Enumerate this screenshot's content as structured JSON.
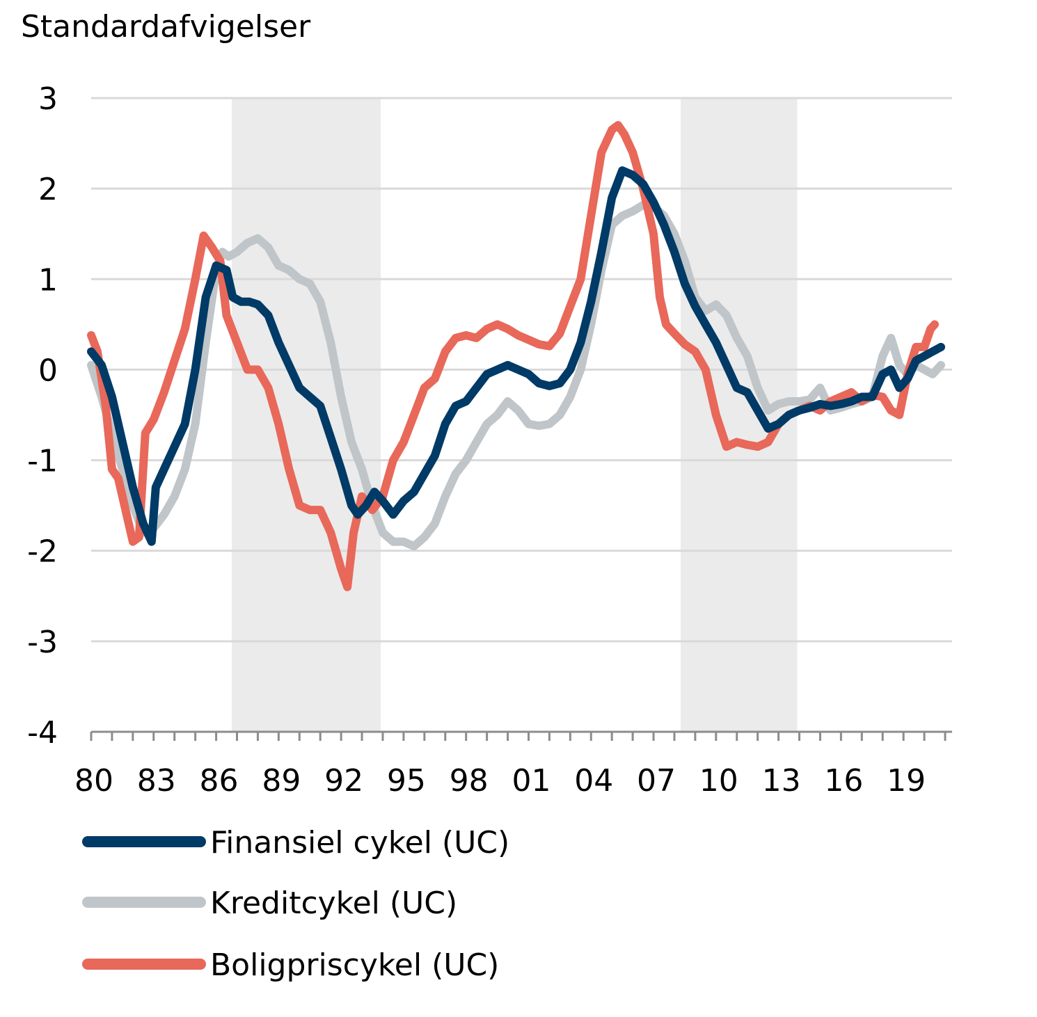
{
  "chart_data": {
    "type": "line",
    "ylabel": "Standardafvigelser",
    "ylim": [
      -4,
      3
    ],
    "yticks": [
      "3",
      "2",
      "1",
      "0",
      "-1",
      "-2",
      "-3",
      "-4"
    ],
    "xlim": [
      1980,
      2021.5
    ],
    "xtick_labels": [
      {
        "year": 1980,
        "label": "80"
      },
      {
        "year": 1983,
        "label": "83"
      },
      {
        "year": 1986,
        "label": "86"
      },
      {
        "year": 1989,
        "label": "89"
      },
      {
        "year": 1992,
        "label": "92"
      },
      {
        "year": 1995,
        "label": "95"
      },
      {
        "year": 1998,
        "label": "98"
      },
      {
        "year": 2001,
        "label": "01"
      },
      {
        "year": 2004,
        "label": "04"
      },
      {
        "year": 2007,
        "label": "07"
      },
      {
        "year": 2010,
        "label": "10"
      },
      {
        "year": 2013,
        "label": "13"
      },
      {
        "year": 2016,
        "label": "16"
      },
      {
        "year": 2019,
        "label": "19"
      }
    ],
    "grid": true,
    "legend_position": "bottom",
    "shaded_periods": [
      {
        "start": 1986.75,
        "end": 1993.9
      },
      {
        "start": 2008.3,
        "end": 2013.9
      }
    ],
    "shade_color": "#ebebeb",
    "series": [
      {
        "name": "Finansiel cykel (UC)",
        "color": "#003a66",
        "points": [
          [
            1980.0,
            0.2
          ],
          [
            1980.5,
            0.05
          ],
          [
            1981.0,
            -0.3
          ],
          [
            1981.5,
            -0.8
          ],
          [
            1982.0,
            -1.3
          ],
          [
            1982.5,
            -1.7
          ],
          [
            1982.9,
            -1.9
          ],
          [
            1983.1,
            -1.3
          ],
          [
            1983.5,
            -1.1
          ],
          [
            1984.0,
            -0.85
          ],
          [
            1984.5,
            -0.6
          ],
          [
            1985.0,
            0.0
          ],
          [
            1985.5,
            0.8
          ],
          [
            1986.0,
            1.15
          ],
          [
            1986.5,
            1.1
          ],
          [
            1986.8,
            0.8
          ],
          [
            1987.2,
            0.75
          ],
          [
            1987.6,
            0.75
          ],
          [
            1988.0,
            0.72
          ],
          [
            1988.5,
            0.6
          ],
          [
            1989.0,
            0.3
          ],
          [
            1989.5,
            0.05
          ],
          [
            1990.0,
            -0.2
          ],
          [
            1990.5,
            -0.3
          ],
          [
            1991.0,
            -0.4
          ],
          [
            1991.5,
            -0.75
          ],
          [
            1992.0,
            -1.1
          ],
          [
            1992.5,
            -1.5
          ],
          [
            1992.8,
            -1.6
          ],
          [
            1993.2,
            -1.5
          ],
          [
            1993.6,
            -1.35
          ],
          [
            1994.0,
            -1.45
          ],
          [
            1994.5,
            -1.6
          ],
          [
            1995.0,
            -1.45
          ],
          [
            1995.5,
            -1.35
          ],
          [
            1996.0,
            -1.15
          ],
          [
            1996.5,
            -0.95
          ],
          [
            1997.0,
            -0.6
          ],
          [
            1997.5,
            -0.4
          ],
          [
            1998.0,
            -0.35
          ],
          [
            1998.5,
            -0.2
          ],
          [
            1999.0,
            -0.05
          ],
          [
            1999.5,
            0.0
          ],
          [
            2000.0,
            0.05
          ],
          [
            2000.5,
            0.0
          ],
          [
            2001.0,
            -0.05
          ],
          [
            2001.5,
            -0.15
          ],
          [
            2002.0,
            -0.18
          ],
          [
            2002.5,
            -0.15
          ],
          [
            2003.0,
            0.0
          ],
          [
            2003.5,
            0.3
          ],
          [
            2004.0,
            0.75
          ],
          [
            2004.5,
            1.3
          ],
          [
            2005.0,
            1.9
          ],
          [
            2005.5,
            2.2
          ],
          [
            2006.0,
            2.15
          ],
          [
            2006.5,
            2.05
          ],
          [
            2007.0,
            1.85
          ],
          [
            2007.5,
            1.6
          ],
          [
            2008.0,
            1.3
          ],
          [
            2008.5,
            0.95
          ],
          [
            2009.0,
            0.7
          ],
          [
            2009.5,
            0.5
          ],
          [
            2010.0,
            0.3
          ],
          [
            2010.5,
            0.05
          ],
          [
            2011.0,
            -0.2
          ],
          [
            2011.5,
            -0.25
          ],
          [
            2012.0,
            -0.45
          ],
          [
            2012.5,
            -0.65
          ],
          [
            2013.0,
            -0.6
          ],
          [
            2013.5,
            -0.5
          ],
          [
            2014.0,
            -0.45
          ],
          [
            2014.5,
            -0.42
          ],
          [
            2015.0,
            -0.38
          ],
          [
            2015.5,
            -0.4
          ],
          [
            2016.0,
            -0.38
          ],
          [
            2016.5,
            -0.35
          ],
          [
            2017.0,
            -0.3
          ],
          [
            2017.5,
            -0.3
          ],
          [
            2018.0,
            -0.05
          ],
          [
            2018.4,
            0.0
          ],
          [
            2018.8,
            -0.2
          ],
          [
            2019.2,
            -0.1
          ],
          [
            2019.6,
            0.1
          ],
          [
            2020.0,
            0.15
          ],
          [
            2020.4,
            0.2
          ],
          [
            2020.8,
            0.25
          ]
        ]
      },
      {
        "name": "Kreditcykel (UC)",
        "color": "#bfc5c8",
        "points": [
          [
            1980.0,
            0.05
          ],
          [
            1980.5,
            -0.3
          ],
          [
            1981.0,
            -0.7
          ],
          [
            1981.5,
            -1.1
          ],
          [
            1982.0,
            -1.5
          ],
          [
            1982.5,
            -1.8
          ],
          [
            1983.0,
            -1.75
          ],
          [
            1983.5,
            -1.6
          ],
          [
            1984.0,
            -1.4
          ],
          [
            1984.5,
            -1.1
          ],
          [
            1985.0,
            -0.6
          ],
          [
            1985.5,
            0.3
          ],
          [
            1986.0,
            1.1
          ],
          [
            1986.3,
            1.3
          ],
          [
            1986.6,
            1.25
          ],
          [
            1987.0,
            1.3
          ],
          [
            1987.5,
            1.4
          ],
          [
            1988.0,
            1.45
          ],
          [
            1988.5,
            1.35
          ],
          [
            1989.0,
            1.15
          ],
          [
            1989.5,
            1.1
          ],
          [
            1990.0,
            1.0
          ],
          [
            1990.5,
            0.95
          ],
          [
            1991.0,
            0.75
          ],
          [
            1991.5,
            0.3
          ],
          [
            1992.0,
            -0.3
          ],
          [
            1992.5,
            -0.8
          ],
          [
            1993.0,
            -1.1
          ],
          [
            1993.5,
            -1.5
          ],
          [
            1994.0,
            -1.8
          ],
          [
            1994.5,
            -1.9
          ],
          [
            1995.0,
            -1.9
          ],
          [
            1995.5,
            -1.95
          ],
          [
            1996.0,
            -1.85
          ],
          [
            1996.5,
            -1.7
          ],
          [
            1997.0,
            -1.4
          ],
          [
            1997.5,
            -1.15
          ],
          [
            1998.0,
            -1.0
          ],
          [
            1998.5,
            -0.8
          ],
          [
            1999.0,
            -0.6
          ],
          [
            1999.5,
            -0.5
          ],
          [
            2000.0,
            -0.35
          ],
          [
            2000.5,
            -0.45
          ],
          [
            2001.0,
            -0.6
          ],
          [
            2001.5,
            -0.62
          ],
          [
            2002.0,
            -0.6
          ],
          [
            2002.5,
            -0.5
          ],
          [
            2003.0,
            -0.3
          ],
          [
            2003.5,
            0.0
          ],
          [
            2004.0,
            0.5
          ],
          [
            2004.5,
            1.1
          ],
          [
            2005.0,
            1.6
          ],
          [
            2005.5,
            1.7
          ],
          [
            2006.0,
            1.75
          ],
          [
            2006.5,
            1.82
          ],
          [
            2007.0,
            1.8
          ],
          [
            2007.5,
            1.7
          ],
          [
            2008.0,
            1.5
          ],
          [
            2008.5,
            1.2
          ],
          [
            2009.0,
            0.8
          ],
          [
            2009.5,
            0.65
          ],
          [
            2010.0,
            0.72
          ],
          [
            2010.5,
            0.6
          ],
          [
            2011.0,
            0.35
          ],
          [
            2011.5,
            0.15
          ],
          [
            2012.0,
            -0.2
          ],
          [
            2012.5,
            -0.45
          ],
          [
            2013.0,
            -0.38
          ],
          [
            2013.5,
            -0.35
          ],
          [
            2014.0,
            -0.35
          ],
          [
            2014.5,
            -0.33
          ],
          [
            2015.0,
            -0.2
          ],
          [
            2015.5,
            -0.45
          ],
          [
            2016.0,
            -0.42
          ],
          [
            2016.5,
            -0.38
          ],
          [
            2017.0,
            -0.35
          ],
          [
            2017.5,
            -0.3
          ],
          [
            2018.0,
            0.15
          ],
          [
            2018.4,
            0.35
          ],
          [
            2018.8,
            0.05
          ],
          [
            2019.2,
            -0.05
          ],
          [
            2019.6,
            0.05
          ],
          [
            2020.0,
            0.0
          ],
          [
            2020.4,
            -0.05
          ],
          [
            2020.8,
            0.05
          ]
        ]
      },
      {
        "name": "Boligpriscykel (UC)",
        "color": "#e8685a",
        "points": [
          [
            1980.0,
            0.38
          ],
          [
            1980.3,
            0.2
          ],
          [
            1980.7,
            -0.4
          ],
          [
            1981.0,
            -1.1
          ],
          [
            1981.3,
            -1.2
          ],
          [
            1981.7,
            -1.6
          ],
          [
            1982.0,
            -1.9
          ],
          [
            1982.3,
            -1.85
          ],
          [
            1982.6,
            -0.7
          ],
          [
            1983.0,
            -0.55
          ],
          [
            1983.5,
            -0.25
          ],
          [
            1984.0,
            0.1
          ],
          [
            1984.5,
            0.45
          ],
          [
            1985.0,
            1.0
          ],
          [
            1985.4,
            1.48
          ],
          [
            1985.8,
            1.35
          ],
          [
            1986.2,
            1.2
          ],
          [
            1986.5,
            0.6
          ],
          [
            1987.0,
            0.3
          ],
          [
            1987.5,
            0.0
          ],
          [
            1988.0,
            0.0
          ],
          [
            1988.5,
            -0.2
          ],
          [
            1989.0,
            -0.6
          ],
          [
            1989.5,
            -1.1
          ],
          [
            1990.0,
            -1.5
          ],
          [
            1990.5,
            -1.55
          ],
          [
            1991.0,
            -1.55
          ],
          [
            1991.5,
            -1.8
          ],
          [
            1992.0,
            -2.2
          ],
          [
            1992.3,
            -2.4
          ],
          [
            1992.6,
            -1.8
          ],
          [
            1993.0,
            -1.4
          ],
          [
            1993.5,
            -1.55
          ],
          [
            1994.0,
            -1.4
          ],
          [
            1994.5,
            -1.0
          ],
          [
            1995.0,
            -0.8
          ],
          [
            1995.5,
            -0.5
          ],
          [
            1996.0,
            -0.2
          ],
          [
            1996.5,
            -0.1
          ],
          [
            1997.0,
            0.2
          ],
          [
            1997.5,
            0.35
          ],
          [
            1998.0,
            0.38
          ],
          [
            1998.5,
            0.35
          ],
          [
            1999.0,
            0.45
          ],
          [
            1999.5,
            0.5
          ],
          [
            2000.0,
            0.45
          ],
          [
            2000.5,
            0.38
          ],
          [
            2001.0,
            0.33
          ],
          [
            2001.5,
            0.28
          ],
          [
            2002.0,
            0.26
          ],
          [
            2002.5,
            0.4
          ],
          [
            2003.0,
            0.7
          ],
          [
            2003.5,
            1.0
          ],
          [
            2004.0,
            1.7
          ],
          [
            2004.5,
            2.4
          ],
          [
            2005.0,
            2.65
          ],
          [
            2005.3,
            2.7
          ],
          [
            2005.6,
            2.6
          ],
          [
            2006.0,
            2.4
          ],
          [
            2006.5,
            2.0
          ],
          [
            2007.0,
            1.5
          ],
          [
            2007.3,
            0.8
          ],
          [
            2007.6,
            0.5
          ],
          [
            2008.0,
            0.4
          ],
          [
            2008.5,
            0.28
          ],
          [
            2009.0,
            0.2
          ],
          [
            2009.5,
            0.0
          ],
          [
            2010.0,
            -0.5
          ],
          [
            2010.5,
            -0.85
          ],
          [
            2011.0,
            -0.8
          ],
          [
            2011.5,
            -0.83
          ],
          [
            2012.0,
            -0.85
          ],
          [
            2012.5,
            -0.8
          ],
          [
            2013.0,
            -0.6
          ],
          [
            2013.5,
            -0.5
          ],
          [
            2014.0,
            -0.45
          ],
          [
            2014.5,
            -0.4
          ],
          [
            2015.0,
            -0.45
          ],
          [
            2015.5,
            -0.35
          ],
          [
            2016.0,
            -0.3
          ],
          [
            2016.5,
            -0.25
          ],
          [
            2017.0,
            -0.35
          ],
          [
            2017.5,
            -0.28
          ],
          [
            2018.0,
            -0.3
          ],
          [
            2018.4,
            -0.45
          ],
          [
            2018.8,
            -0.5
          ],
          [
            2019.2,
            -0.05
          ],
          [
            2019.6,
            0.25
          ],
          [
            2020.0,
            0.25
          ],
          [
            2020.3,
            0.45
          ],
          [
            2020.5,
            0.5
          ]
        ]
      }
    ]
  }
}
